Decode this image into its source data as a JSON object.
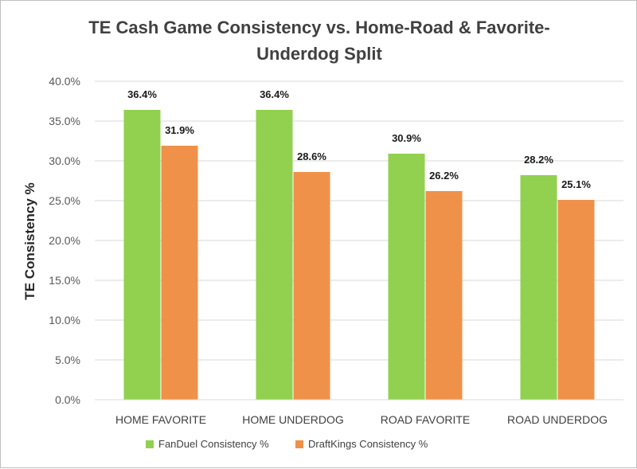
{
  "chart_data": {
    "type": "bar",
    "title_line1": "TE Cash Game Consistency vs. Home-Road & Favorite-",
    "title_line2": "Underdog Split",
    "ylabel": "TE Consistency %",
    "xlabel": "",
    "ylim": [
      0,
      40
    ],
    "y_ticks": [
      "0.0%",
      "5.0%",
      "10.0%",
      "15.0%",
      "20.0%",
      "25.0%",
      "30.0%",
      "35.0%",
      "40.0%"
    ],
    "categories": [
      "HOME FAVORITE",
      "HOME UNDERDOG",
      "ROAD FAVORITE",
      "ROAD UNDERDOG"
    ],
    "series": [
      {
        "name": "FanDuel Consistency %",
        "color": "#92d050",
        "values": [
          36.4,
          36.4,
          30.9,
          28.2
        ],
        "labels": [
          "36.4%",
          "36.4%",
          "30.9%",
          "28.2%"
        ]
      },
      {
        "name": "DraftKings Consistency %",
        "color": "#f0914a",
        "values": [
          31.9,
          28.6,
          26.2,
          25.1
        ],
        "labels": [
          "31.9%",
          "28.6%",
          "26.2%",
          "25.1%"
        ]
      }
    ],
    "grid": true,
    "legend_position": "bottom"
  }
}
